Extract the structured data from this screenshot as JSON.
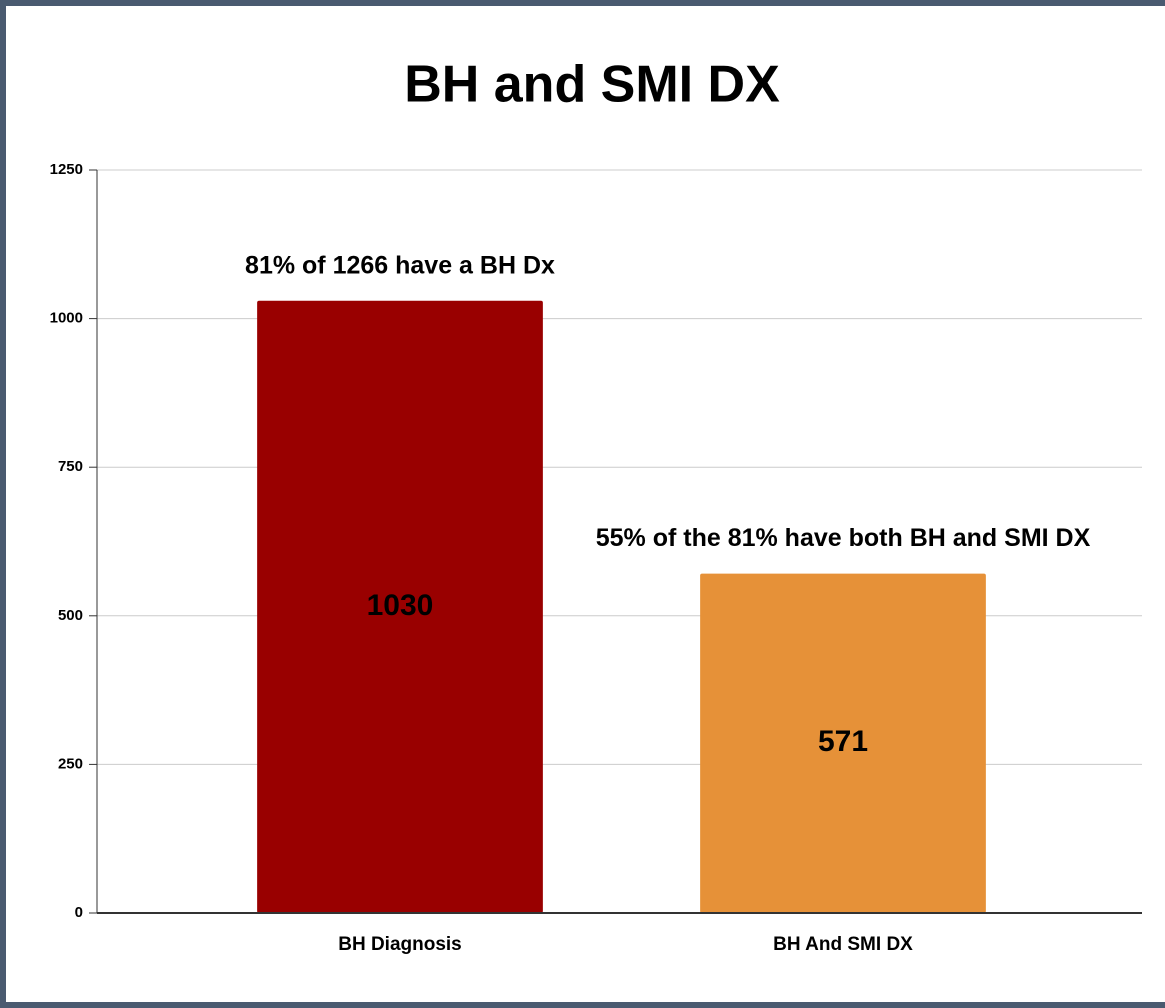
{
  "chart_data": {
    "type": "bar",
    "title": "BH and SMI DX",
    "categories": [
      "BH Diagnosis",
      "BH And SMI DX"
    ],
    "values": [
      1030,
      571
    ],
    "colors": [
      "#990000",
      "#e69138"
    ],
    "annotations": [
      "81% of 1266 have a BH Dx",
      "55% of the 81% have both BH and SMI DX"
    ],
    "ylim": [
      0,
      1250
    ],
    "yticks": [
      0,
      250,
      500,
      750,
      1000,
      1250
    ],
    "grid": true
  }
}
